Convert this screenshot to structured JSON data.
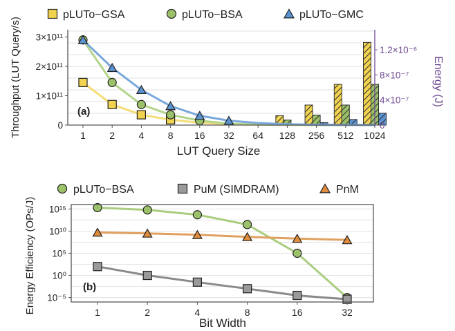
{
  "chart_data": [
    {
      "type": "line",
      "panel_label": "(a)",
      "xlabel": "LUT Query Size",
      "ylabel": "Throughput (LUT Query/s)",
      "y2label": "Energy (J)",
      "categories": [
        "1",
        "2",
        "4",
        "8",
        "16",
        "32",
        "64",
        "128",
        "256",
        "512",
        "1024"
      ],
      "ylim": [
        0,
        320000000000.0
      ],
      "y_ticks": [
        {
          "value": 0,
          "label": "0"
        },
        {
          "value": 100000000000.0,
          "label": "1×10¹¹"
        },
        {
          "value": 200000000000.0,
          "label": "2×10¹¹"
        },
        {
          "value": 300000000000.0,
          "label": "3×10¹¹"
        }
      ],
      "y2lim": [
        0,
        1.5e-06
      ],
      "y2_ticks": [
        {
          "value": 0,
          "label": "0"
        },
        {
          "value": 4e-07,
          "label": "4×10⁻⁷"
        },
        {
          "value": 8e-07,
          "label": "8×10⁻⁷"
        },
        {
          "value": 1.2e-06,
          "label": "1.2×10⁻⁶"
        }
      ],
      "legend_position": "top",
      "grid": true,
      "series": [
        {
          "name": "pLUTo−GSA",
          "color": "#f2d34f",
          "line_color": "#f5dd78",
          "marker": "square",
          "values": [
            145000000000.0,
            70000000000.0,
            35000000000.0,
            18000000000.0,
            8000000000.0,
            3000000000.0,
            1200000000.0,
            400000000.0,
            150000000.0,
            50000000.0,
            20000000.0
          ]
        },
        {
          "name": "pLUTo−BSA",
          "color": "#9bc26a",
          "line_color": "#b3d48a",
          "marker": "circle",
          "values": [
            290000000000.0,
            145000000000.0,
            70000000000.0,
            35000000000.0,
            15000000000.0,
            5000000000.0,
            2000000000.0,
            700000000.0,
            250000000.0,
            100000000.0,
            40000000.0
          ]
        },
        {
          "name": "pLUTo−GMC",
          "color": "#5b93d0",
          "line_color": "#7aa8dc",
          "marker": "triangle",
          "values": [
            290000000000.0,
            195000000000.0,
            120000000000.0,
            65000000000.0,
            32000000000.0,
            15000000000.0,
            7000000000.0,
            3000000000.0,
            1200000000.0,
            500000000.0,
            200000000.0
          ]
        }
      ],
      "energy_bars": [
        {
          "series": "pLUTo−GSA",
          "values": [
            0,
            0,
            0,
            0,
            0,
            0,
            1e-08,
            1.5e-07,
            3.2e-07,
            6.5e-07,
            1.32e-06
          ]
        },
        {
          "series": "pLUTo−BSA",
          "values": [
            0,
            0,
            0,
            0,
            0,
            0,
            1e-08,
            8e-08,
            1.6e-07,
            3.2e-07,
            6.5e-07
          ]
        },
        {
          "series": "pLUTo−GMC",
          "values": [
            0,
            0,
            0,
            0,
            0,
            0,
            0,
            1e-08,
            4e-08,
            9e-08,
            1.9e-07
          ]
        }
      ]
    },
    {
      "type": "line",
      "panel_label": "(b)",
      "xlabel": "Bit Width",
      "ylabel": "Energy Efficiency (OPs/J)",
      "categories": [
        "1",
        "2",
        "4",
        "8",
        "16",
        "32"
      ],
      "y_scale": "log",
      "ylim": [
        1e-06,
        1e+16
      ],
      "y_ticks": [
        {
          "value": 1e-05,
          "label": "10⁻⁵"
        },
        {
          "value": 1,
          "label": "10⁰"
        },
        {
          "value": 100000.0,
          "label": "10⁵"
        },
        {
          "value": 10000000000.0,
          "label": "10¹⁰"
        },
        {
          "value": 1000000000000000.0,
          "label": "10¹⁵"
        }
      ],
      "legend_position": "top",
      "grid": true,
      "series": [
        {
          "name": "pLUTo−BSA",
          "color": "#9bc26a",
          "line_color": "#a9cd7e",
          "marker": "circle",
          "values": [
            2000000000000000.0,
            600000000000000.0,
            50000000000000.0,
            300000000000.0,
            100000.0,
            1e-05
          ]
        },
        {
          "name": "PuM (SIMDRAM)",
          "color": "#9a9a9a",
          "line_color": "#8a8a8a",
          "marker": "square",
          "values": [
            100,
            1,
            0.03,
            0.001,
            3e-05,
            4e-06
          ]
        },
        {
          "name": "PnM",
          "color": "#e08a3c",
          "line_color": "#e0a060",
          "marker": "triangle",
          "values": [
            5000000000.0,
            3000000000.0,
            1500000000.0,
            500000000.0,
            200000000.0,
            100000000.0
          ]
        }
      ]
    }
  ]
}
